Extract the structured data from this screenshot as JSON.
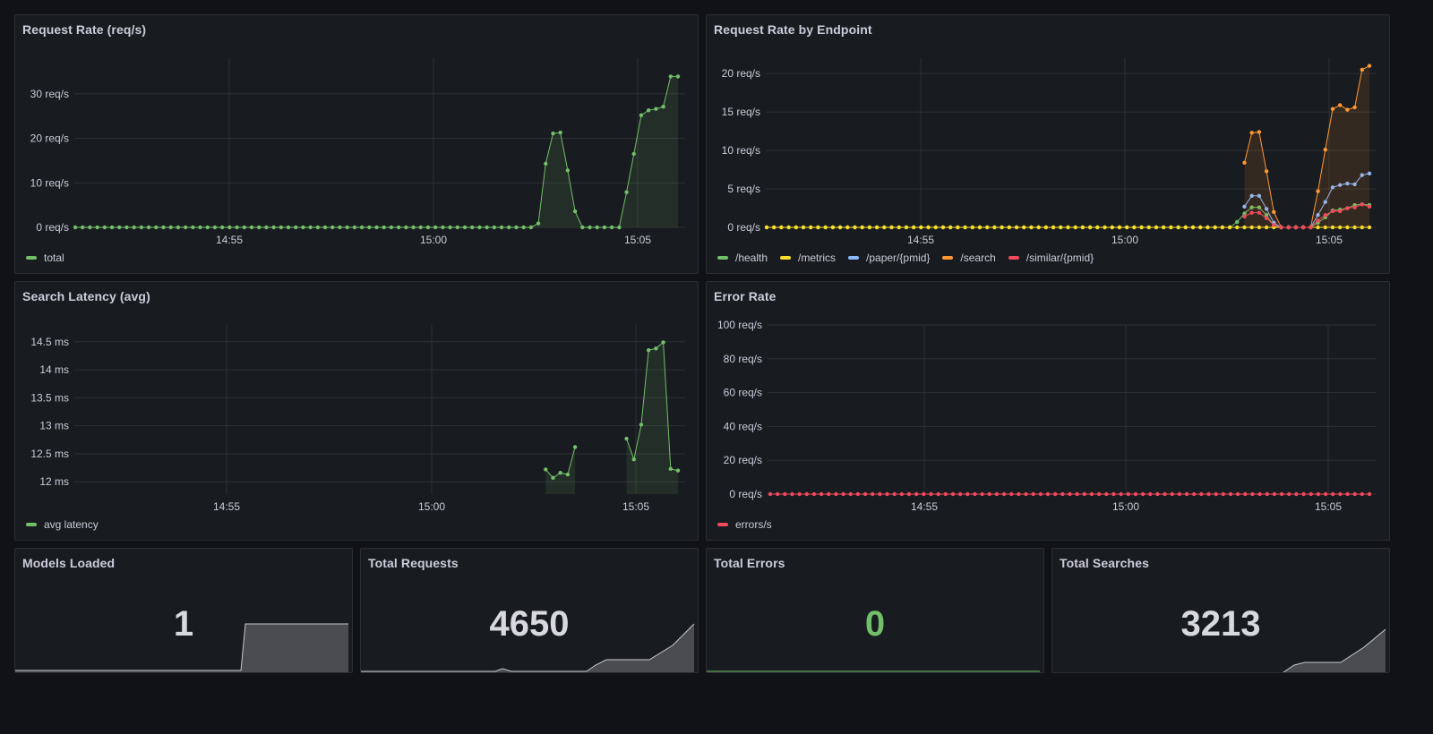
{
  "colors": {
    "green": "#73bf69",
    "yellow": "#fade2a",
    "blue": "#8ab8ff",
    "orange": "#ff9830",
    "red": "#f2495c",
    "grid": "#2c2f35",
    "spark_fill": "#4a4c52",
    "spark_line": "#c7c9cf",
    "stat_text": "#d8d9e0",
    "stat_ok": "#73bf69"
  },
  "panels": {
    "request_rate": {
      "title": "Request Rate (req/s)",
      "legend": [
        {
          "label": "total",
          "color": "#73bf69"
        }
      ]
    },
    "rate_by_endpoint": {
      "title": "Request Rate by Endpoint",
      "legend": [
        {
          "label": "/health",
          "color": "#73bf69"
        },
        {
          "label": "/metrics",
          "color": "#fade2a"
        },
        {
          "label": "/paper/{pmid}",
          "color": "#8ab8ff"
        },
        {
          "label": "/search",
          "color": "#ff9830"
        },
        {
          "label": "/similar/{pmid}",
          "color": "#f2495c"
        }
      ]
    },
    "search_latency": {
      "title": "Search Latency (avg)",
      "legend": [
        {
          "label": "avg latency",
          "color": "#73bf69"
        }
      ]
    },
    "error_rate": {
      "title": "Error Rate",
      "legend": [
        {
          "label": "errors/s",
          "color": "#f2495c"
        }
      ]
    },
    "models_loaded": {
      "title": "Models Loaded",
      "value": "1"
    },
    "total_requests": {
      "title": "Total Requests",
      "value": "4650"
    },
    "total_errors": {
      "title": "Total Errors",
      "value": "0"
    },
    "total_searches": {
      "title": "Total Searches",
      "value": "3213"
    }
  },
  "chart_data": [
    {
      "id": "request_rate",
      "type": "line",
      "title": "Request Rate (req/s)",
      "x_ticks": [
        "14:55",
        "15:00",
        "15:05"
      ],
      "y_ticks": [
        "0 req/s",
        "10 req/s",
        "20 req/s",
        "30 req/s"
      ],
      "ylim": [
        0,
        38
      ],
      "series": [
        {
          "name": "total",
          "color": "#73bf69",
          "fill": true,
          "values": [
            0,
            0,
            0,
            0,
            0,
            0,
            0,
            0,
            0,
            0,
            0,
            0,
            0,
            0,
            0,
            0,
            0,
            0,
            0,
            0,
            0,
            0,
            0,
            0,
            0,
            0,
            0,
            0,
            0,
            0,
            0,
            0,
            0,
            0,
            0,
            0,
            0,
            0,
            0,
            0,
            0,
            0,
            0,
            0,
            0,
            0,
            0,
            0,
            0,
            0,
            0,
            0,
            0,
            0,
            0,
            0,
            0,
            0,
            0,
            0,
            0,
            0,
            0,
            0.9,
            14.3,
            21.1,
            21.3,
            12.8,
            3.6,
            0,
            0,
            0,
            0,
            0,
            0,
            7.9,
            16.5,
            25.2,
            26.3,
            26.6,
            27.1,
            33.9,
            33.9
          ]
        }
      ]
    },
    {
      "id": "rate_by_endpoint",
      "type": "line",
      "title": "Request Rate by Endpoint",
      "x_ticks": [
        "14:55",
        "15:00",
        "15:05"
      ],
      "y_ticks": [
        "0 req/s",
        "5 req/s",
        "10 req/s",
        "15 req/s",
        "20 req/s"
      ],
      "ylim": [
        0,
        22
      ],
      "series": [
        {
          "name": "/health",
          "color": "#73bf69",
          "values": [
            0,
            0,
            0,
            0,
            0,
            0,
            0,
            0,
            0,
            0,
            0,
            0,
            0,
            0,
            0,
            0,
            0,
            0,
            0,
            0,
            0,
            0,
            0,
            0,
            0,
            0,
            0,
            0,
            0,
            0,
            0,
            0,
            0,
            0,
            0,
            0,
            0,
            0,
            0,
            0,
            0,
            0,
            0,
            0,
            0,
            0,
            0,
            0,
            0,
            0,
            0,
            0,
            0,
            0,
            0,
            0,
            0,
            0,
            0,
            0,
            0,
            0,
            0,
            0,
            0.7,
            1.8,
            2.6,
            2.6,
            1.6,
            0.2,
            0,
            0,
            0,
            0,
            0,
            0.6,
            1.3,
            2.2,
            2.3,
            2.5,
            2.9,
            3.0,
            2.9
          ]
        },
        {
          "name": "/metrics",
          "color": "#fade2a",
          "values": [
            0,
            0,
            0,
            0,
            0,
            0,
            0,
            0,
            0,
            0,
            0,
            0,
            0,
            0,
            0,
            0,
            0,
            0,
            0,
            0,
            0,
            0,
            0,
            0,
            0,
            0,
            0,
            0,
            0,
            0,
            0,
            0,
            0,
            0,
            0,
            0,
            0,
            0,
            0,
            0,
            0,
            0,
            0,
            0,
            0,
            0,
            0,
            0,
            0,
            0,
            0,
            0,
            0,
            0,
            0,
            0,
            0,
            0,
            0,
            0,
            0,
            0,
            0,
            0,
            0,
            0,
            0,
            0,
            0,
            0,
            0,
            0,
            0,
            0,
            0,
            0,
            0,
            0,
            0,
            0,
            0,
            0,
            0
          ]
        },
        {
          "name": "/paper/{pmid}",
          "color": "#8ab8ff",
          "values": [
            null,
            null,
            null,
            null,
            null,
            null,
            null,
            null,
            null,
            null,
            null,
            null,
            null,
            null,
            null,
            null,
            null,
            null,
            null,
            null,
            null,
            null,
            null,
            null,
            null,
            null,
            null,
            null,
            null,
            null,
            null,
            null,
            null,
            null,
            null,
            null,
            null,
            null,
            null,
            null,
            null,
            null,
            null,
            null,
            null,
            null,
            null,
            null,
            null,
            null,
            null,
            null,
            null,
            null,
            null,
            null,
            null,
            null,
            null,
            null,
            null,
            null,
            null,
            null,
            null,
            2.7,
            4.1,
            4.1,
            2.4,
            0.6,
            0,
            0,
            0,
            0,
            0,
            1.6,
            3.3,
            5.2,
            5.5,
            5.7,
            5.6,
            6.8,
            7.0
          ]
        },
        {
          "name": "/search",
          "color": "#ff9830",
          "fill": true,
          "values": [
            null,
            null,
            null,
            null,
            null,
            null,
            null,
            null,
            null,
            null,
            null,
            null,
            null,
            null,
            null,
            null,
            null,
            null,
            null,
            null,
            null,
            null,
            null,
            null,
            null,
            null,
            null,
            null,
            null,
            null,
            null,
            null,
            null,
            null,
            null,
            null,
            null,
            null,
            null,
            null,
            null,
            null,
            null,
            null,
            null,
            null,
            null,
            null,
            null,
            null,
            null,
            null,
            null,
            null,
            null,
            null,
            null,
            null,
            null,
            null,
            null,
            null,
            null,
            null,
            null,
            8.4,
            12.3,
            12.4,
            7.3,
            2.0,
            0,
            0,
            0,
            0,
            0,
            4.7,
            10.1,
            15.4,
            15.9,
            15.3,
            15.6,
            20.5,
            21.0
          ]
        },
        {
          "name": "/similar/{pmid}",
          "color": "#f2495c",
          "values": [
            null,
            null,
            null,
            null,
            null,
            null,
            null,
            null,
            null,
            null,
            null,
            null,
            null,
            null,
            null,
            null,
            null,
            null,
            null,
            null,
            null,
            null,
            null,
            null,
            null,
            null,
            null,
            null,
            null,
            null,
            null,
            null,
            null,
            null,
            null,
            null,
            null,
            null,
            null,
            null,
            null,
            null,
            null,
            null,
            null,
            null,
            null,
            null,
            null,
            null,
            null,
            null,
            null,
            null,
            null,
            null,
            null,
            null,
            null,
            null,
            null,
            null,
            null,
            null,
            null,
            1.4,
            1.9,
            1.9,
            1.2,
            0.3,
            0,
            0,
            0,
            0,
            0,
            0.9,
            1.6,
            2.1,
            2.1,
            2.5,
            2.6,
            3.0,
            2.7
          ]
        }
      ]
    },
    {
      "id": "search_latency",
      "type": "line",
      "title": "Search Latency (avg)",
      "x_ticks": [
        "14:55",
        "15:00",
        "15:05"
      ],
      "y_ticks": [
        "12 ms",
        "12.5 ms",
        "13 ms",
        "13.5 ms",
        "14 ms",
        "14.5 ms"
      ],
      "ylim": [
        11.78,
        14.8
      ],
      "series": [
        {
          "name": "avg latency",
          "color": "#73bf69",
          "fill": true,
          "values": [
            null,
            null,
            null,
            null,
            null,
            null,
            null,
            null,
            null,
            null,
            null,
            null,
            null,
            null,
            null,
            null,
            null,
            null,
            null,
            null,
            null,
            null,
            null,
            null,
            null,
            null,
            null,
            null,
            null,
            null,
            null,
            null,
            null,
            null,
            null,
            null,
            null,
            null,
            null,
            null,
            null,
            null,
            null,
            null,
            null,
            null,
            null,
            null,
            null,
            null,
            null,
            null,
            null,
            null,
            null,
            null,
            null,
            null,
            null,
            null,
            null,
            null,
            null,
            null,
            12.22,
            12.07,
            12.16,
            12.13,
            12.62,
            null,
            null,
            null,
            null,
            null,
            null,
            12.77,
            12.4,
            13.02,
            14.35,
            14.38,
            14.49,
            12.23,
            12.2
          ]
        }
      ]
    },
    {
      "id": "error_rate",
      "type": "line",
      "title": "Error Rate",
      "x_ticks": [
        "14:55",
        "15:00",
        "15:05"
      ],
      "y_ticks": [
        "0 req/s",
        "20 req/s",
        "40 req/s",
        "60 req/s",
        "80 req/s",
        "100 req/s"
      ],
      "ylim": [
        0,
        100
      ],
      "series": [
        {
          "name": "errors/s",
          "color": "#f2495c",
          "values": [
            0,
            0,
            0,
            0,
            0,
            0,
            0,
            0,
            0,
            0,
            0,
            0,
            0,
            0,
            0,
            0,
            0,
            0,
            0,
            0,
            0,
            0,
            0,
            0,
            0,
            0,
            0,
            0,
            0,
            0,
            0,
            0,
            0,
            0,
            0,
            0,
            0,
            0,
            0,
            0,
            0,
            0,
            0,
            0,
            0,
            0,
            0,
            0,
            0,
            0,
            0,
            0,
            0,
            0,
            0,
            0,
            0,
            0,
            0,
            0,
            0,
            0,
            0,
            0,
            0,
            0,
            0,
            0,
            0,
            0,
            0,
            0,
            0,
            0,
            0,
            0,
            0,
            0,
            0,
            0,
            0,
            0,
            0
          ]
        }
      ]
    }
  ]
}
